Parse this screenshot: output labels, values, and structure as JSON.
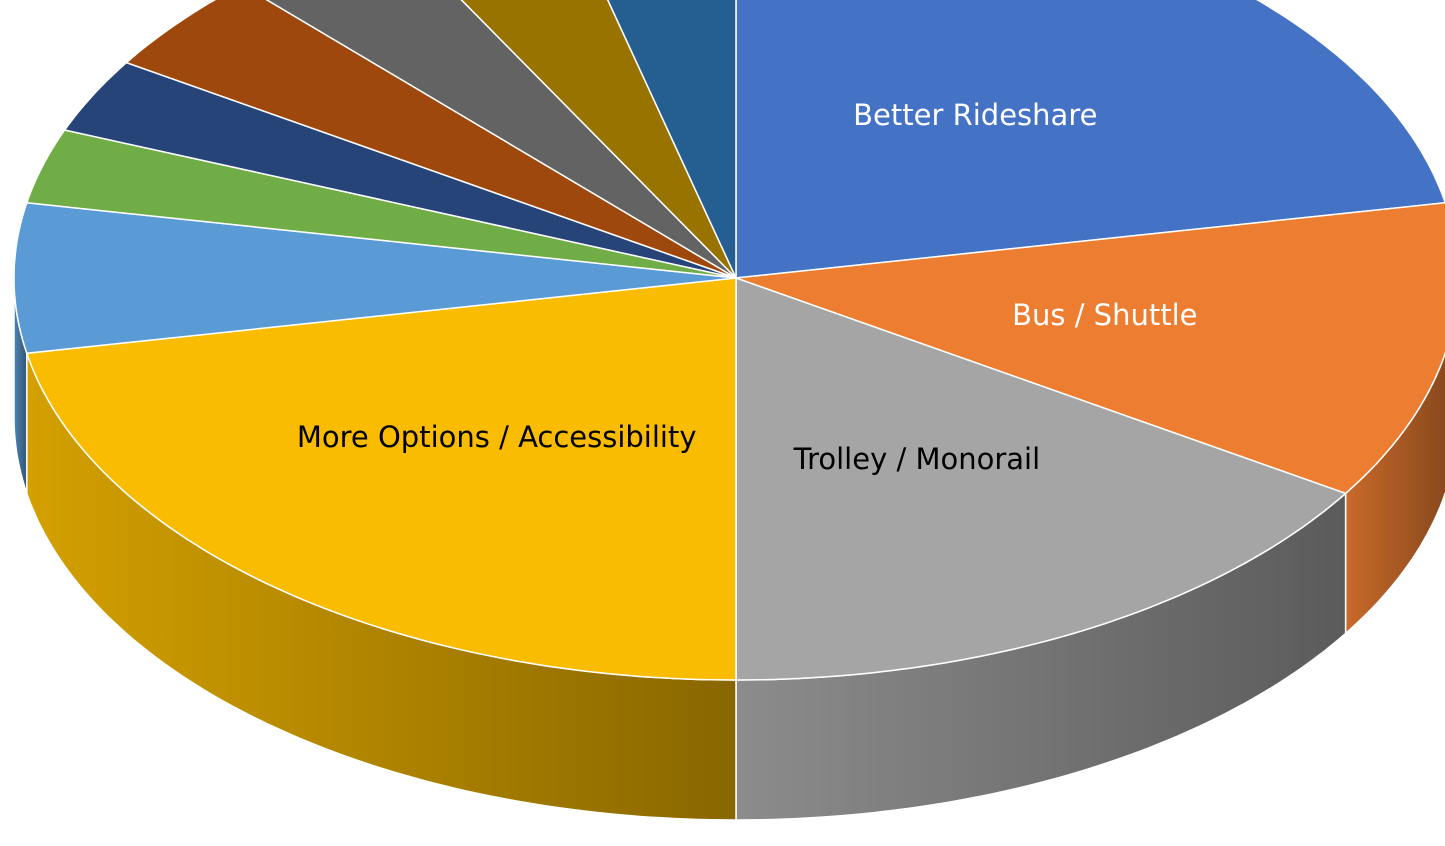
{
  "chart_data": {
    "type": "pie3d",
    "categories": [
      "Better Rideshare",
      "Bus / Shuttle",
      "Trolley / Monorail",
      "More Options / Accessibility",
      null,
      null,
      null,
      null,
      null,
      null,
      null
    ],
    "values": [
      22,
      12,
      16,
      22,
      6,
      3,
      3,
      4,
      4,
      4,
      4
    ],
    "colors": [
      "#4472c4",
      "#ed7d31",
      "#a5a5a5",
      "#f9bc00",
      "#5b9bd5",
      "#70ad47",
      "#264478",
      "#9e480e",
      "#636363",
      "#997300",
      "#255e91"
    ]
  }
}
